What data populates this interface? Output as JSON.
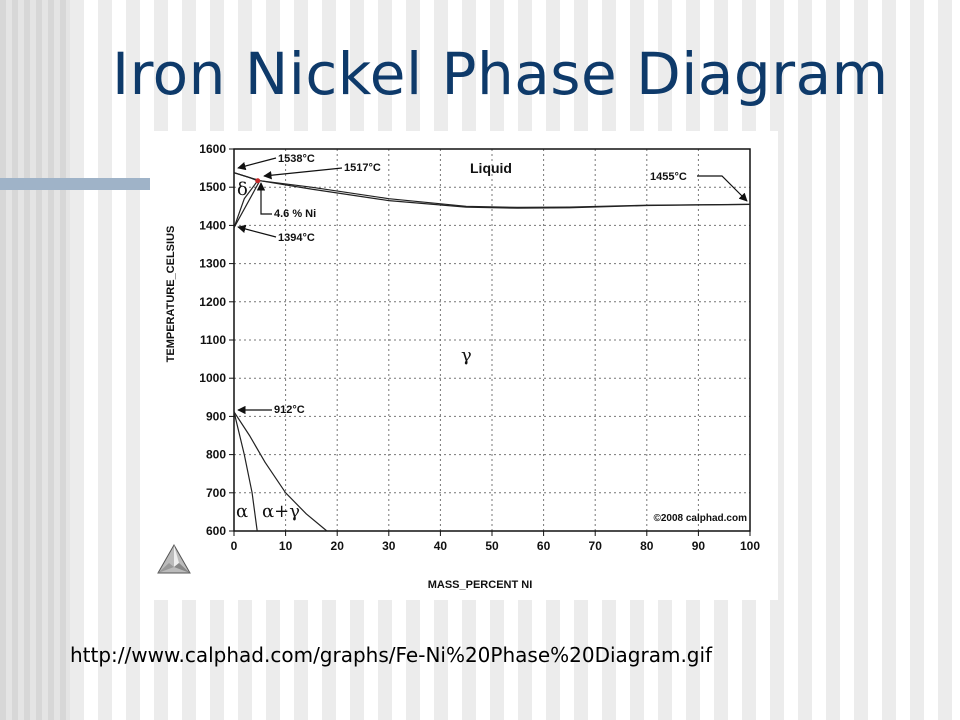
{
  "slide": {
    "title": "Iron Nickel Phase Diagram",
    "source_url": "http://www.calphad.com/graphs/Fe-Ni%20Phase%20Diagram.gif"
  },
  "chart_data": {
    "type": "line",
    "xlabel": "MASS_PERCENT NI",
    "ylabel": "TEMPERATURE_CELSIUS",
    "xlim": [
      0,
      100
    ],
    "ylim": [
      600,
      1600
    ],
    "x_ticks": [
      0,
      10,
      20,
      30,
      40,
      50,
      60,
      70,
      80,
      90,
      100
    ],
    "y_ticks": [
      600,
      700,
      800,
      900,
      1000,
      1100,
      1200,
      1300,
      1400,
      1500,
      1600
    ],
    "grid": "dotted",
    "series": [
      {
        "points": [
          [
            0,
            1538
          ],
          [
            5,
            1517
          ],
          [
            15,
            1500
          ],
          [
            30,
            1470
          ],
          [
            45,
            1450
          ],
          [
            55,
            1447
          ],
          [
            65,
            1448
          ],
          [
            80,
            1453
          ],
          [
            100,
            1455
          ]
        ]
      },
      {
        "points": [
          [
            0,
            1538
          ],
          [
            5,
            1517
          ],
          [
            15,
            1495
          ],
          [
            30,
            1465
          ],
          [
            45,
            1448
          ],
          [
            55,
            1445
          ],
          [
            65,
            1446
          ],
          [
            80,
            1452
          ],
          [
            100,
            1455
          ]
        ]
      },
      {
        "points": [
          [
            0,
            1538
          ],
          [
            3,
            1525
          ],
          [
            4.6,
            1517
          ]
        ]
      },
      {
        "points": [
          [
            0,
            1394
          ],
          [
            2,
            1470
          ],
          [
            4.6,
            1517
          ]
        ]
      },
      {
        "points": [
          [
            0,
            1394
          ],
          [
            5,
            1517
          ]
        ]
      },
      {
        "points": [
          [
            0,
            912
          ],
          [
            2,
            800
          ],
          [
            3.5,
            700
          ],
          [
            4.5,
            600
          ]
        ]
      },
      {
        "points": [
          [
            0,
            912
          ],
          [
            3,
            850
          ],
          [
            6,
            780
          ],
          [
            10,
            700
          ],
          [
            14,
            645
          ],
          [
            18,
            600
          ]
        ]
      }
    ],
    "annotations": [
      {
        "label": "1538°C",
        "x": 0,
        "y": 1538
      },
      {
        "label": "1517°C",
        "x": 5,
        "y": 1517
      },
      {
        "label": "4.6 % Ni",
        "x": 4.6,
        "y": 1517
      },
      {
        "label": "1394°C",
        "x": 0,
        "y": 1394
      },
      {
        "label": "1455°C",
        "x": 100,
        "y": 1455
      },
      {
        "label": "912°C",
        "x": 0,
        "y": 912
      }
    ],
    "phase_labels": {
      "liquid": "Liquid",
      "delta": "δ",
      "gamma": "γ",
      "alpha": "α",
      "alpha_gamma": "α+γ"
    },
    "copyright": "©2008 calphad.com"
  }
}
